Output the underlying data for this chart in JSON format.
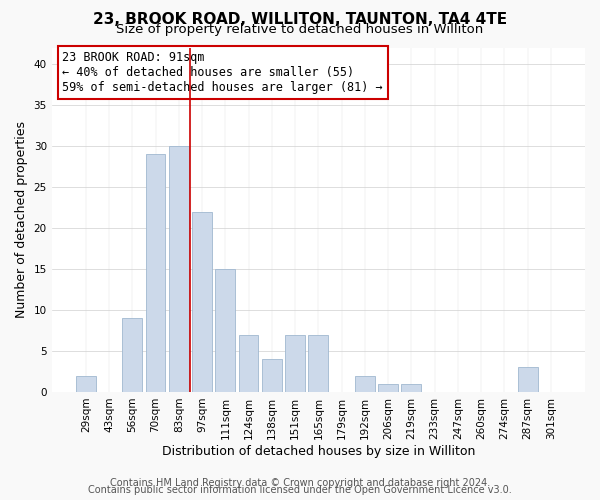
{
  "title": "23, BROOK ROAD, WILLITON, TAUNTON, TA4 4TE",
  "subtitle": "Size of property relative to detached houses in Williton",
  "xlabel": "Distribution of detached houses by size in Williton",
  "ylabel": "Number of detached properties",
  "bar_labels": [
    "29sqm",
    "43sqm",
    "56sqm",
    "70sqm",
    "83sqm",
    "97sqm",
    "111sqm",
    "124sqm",
    "138sqm",
    "151sqm",
    "165sqm",
    "179sqm",
    "192sqm",
    "206sqm",
    "219sqm",
    "233sqm",
    "247sqm",
    "260sqm",
    "274sqm",
    "287sqm",
    "301sqm"
  ],
  "bar_values": [
    2,
    0,
    9,
    29,
    30,
    22,
    15,
    7,
    4,
    7,
    7,
    0,
    2,
    1,
    1,
    0,
    0,
    0,
    0,
    3,
    0
  ],
  "bar_color": "#ccd9ea",
  "bar_edge_color": "#a0b8d0",
  "vline_color": "#cc0000",
  "annotation_title": "23 BROOK ROAD: 91sqm",
  "annotation_line1": "← 40% of detached houses are smaller (55)",
  "annotation_line2": "59% of semi-detached houses are larger (81) →",
  "ylim": [
    0,
    42
  ],
  "yticks": [
    0,
    5,
    10,
    15,
    20,
    25,
    30,
    35,
    40
  ],
  "footer1": "Contains HM Land Registry data © Crown copyright and database right 2024.",
  "footer2": "Contains public sector information licensed under the Open Government Licence v3.0.",
  "background_color": "#f9f9f9",
  "plot_bg_color": "#ffffff",
  "title_fontsize": 11,
  "subtitle_fontsize": 9.5,
  "axis_label_fontsize": 9,
  "tick_fontsize": 7.5,
  "footer_fontsize": 7,
  "annotation_fontsize": 8.5
}
